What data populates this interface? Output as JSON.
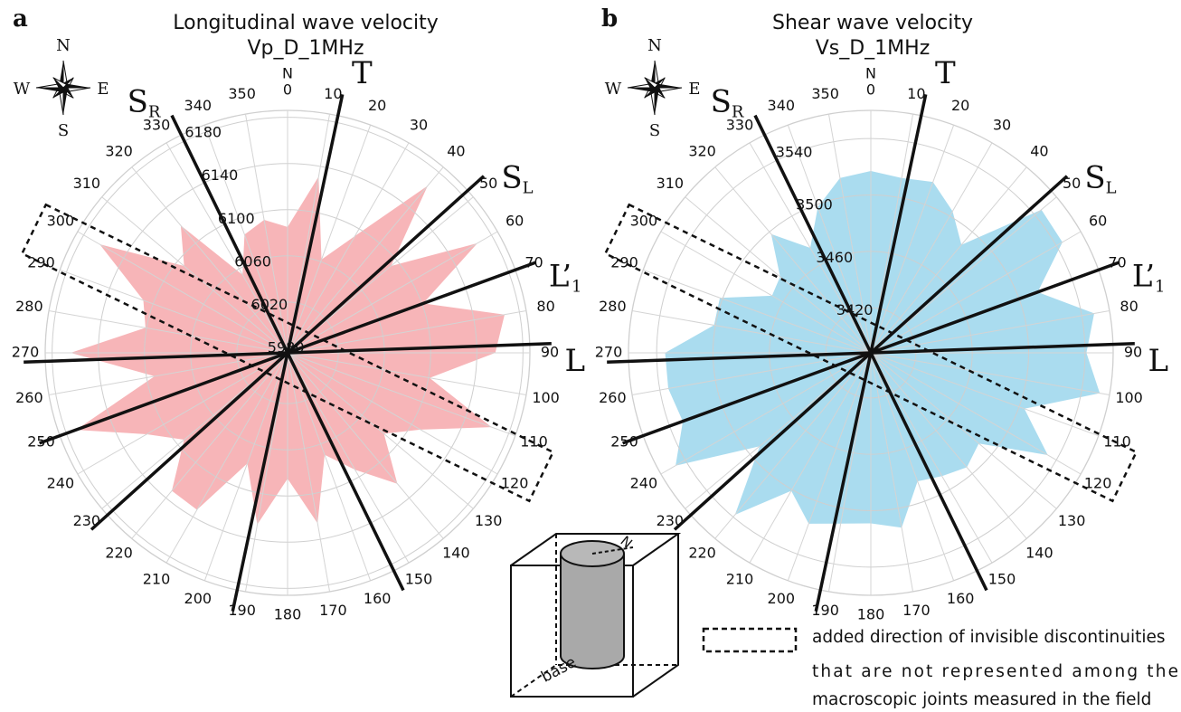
{
  "chart_data": [
    {
      "type": "radar",
      "panel": "a",
      "title": "Longitudinal wave velocity",
      "subtitle": "Vp_D_1MHz",
      "north_label": "N",
      "compass": [
        "N",
        "E",
        "S",
        "W"
      ],
      "theta": [
        0,
        10,
        20,
        30,
        40,
        50,
        60,
        70,
        80,
        90,
        100,
        110,
        120,
        130,
        140,
        150,
        160,
        170,
        180,
        190,
        200,
        210,
        220,
        230,
        240,
        250,
        260,
        270,
        280,
        290,
        300,
        310,
        320,
        330,
        340,
        350
      ],
      "values": [
        6085,
        6131,
        6062,
        6093,
        6165,
        6093,
        6166,
        6101,
        6167,
        6156,
        6101,
        6164,
        6109,
        6085,
        6124,
        6093,
        6070,
        6126,
        6085,
        6127,
        6078,
        6133,
        6132,
        6093,
        6117,
        6171,
        6093,
        6164,
        6101,
        6109,
        6164,
        6093,
        6120,
        6054,
        6085,
        6093
      ],
      "color": "#f7b5b8",
      "rlim": [
        5976,
        6186
      ],
      "rticks": [
        5980,
        6020,
        6060,
        6100,
        6140,
        6180
      ],
      "joints": [
        {
          "label": "T",
          "angle": 12
        },
        {
          "label": "S",
          "sub": "L",
          "angle": 48
        },
        {
          "label": "L’",
          "sub": "1",
          "angle": 70
        },
        {
          "label": "L",
          "angle": 88
        },
        {
          "label": "S",
          "sub": "R",
          "angle": 334
        }
      ],
      "discontinuity_band_angle": 296
    },
    {
      "type": "radar",
      "panel": "b",
      "title": "Shear wave velocity",
      "subtitle": "Vs_D_1MHz",
      "north_label": "N",
      "compass": [
        "N",
        "E",
        "S",
        "W"
      ],
      "theta": [
        0,
        10,
        20,
        30,
        40,
        50,
        60,
        70,
        80,
        90,
        100,
        110,
        120,
        130,
        140,
        150,
        160,
        170,
        180,
        190,
        200,
        210,
        220,
        230,
        240,
        250,
        260,
        270,
        280,
        290,
        300,
        310,
        320,
        330,
        340,
        350
      ],
      "values": [
        3517,
        3514,
        3517,
        3504,
        3488,
        3546,
        3545,
        3514,
        3549,
        3541,
        3553,
        3504,
        3533,
        3488,
        3494,
        3489,
        3485,
        3514,
        3509,
        3511,
        3517,
        3501,
        3538,
        3491,
        3548,
        3530,
        3534,
        3534,
        3501,
        3502,
        3469,
        3472,
        3498,
        3474,
        3498,
        3514
      ],
      "color": "#aadcef",
      "rlim": [
        3388,
        3560
      ],
      "rticks": [
        3420,
        3460,
        3500,
        3540
      ],
      "joints": [
        {
          "label": "T",
          "angle": 12
        },
        {
          "label": "S",
          "sub": "L",
          "angle": 48
        },
        {
          "label": "L’",
          "sub": "1",
          "angle": 70
        },
        {
          "label": "L",
          "angle": 88
        },
        {
          "label": "S",
          "sub": "R",
          "angle": 334
        }
      ],
      "discontinuity_band_angle": 296
    }
  ],
  "diagram": {
    "base": "base",
    "north": "N"
  },
  "legend": {
    "lines": [
      "added direction of invisible discontinuities",
      "that are not represented among the",
      "macroscopic joints measured in the field"
    ]
  }
}
